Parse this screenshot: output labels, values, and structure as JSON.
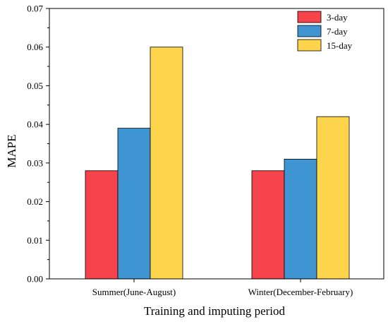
{
  "chart_data": {
    "type": "bar",
    "title": "",
    "xlabel": "Training and imputing period",
    "ylabel": "MAPE",
    "categories": [
      "Summer(June-August)",
      "Winter(December-February)"
    ],
    "series": [
      {
        "name": "3-day",
        "values": [
          0.028,
          0.028
        ],
        "color": "#f5424b"
      },
      {
        "name": "7-day",
        "values": [
          0.039,
          0.031
        ],
        "color": "#3f95d1"
      },
      {
        "name": "15-day",
        "values": [
          0.06,
          0.042
        ],
        "color": "#fdd44b"
      }
    ],
    "ylim": [
      0,
      0.07
    ],
    "yticks": [
      "0.00",
      "0.01",
      "0.02",
      "0.03",
      "0.04",
      "0.05",
      "0.06",
      "0.07"
    ],
    "grid": false,
    "legend_position": "top-right"
  }
}
